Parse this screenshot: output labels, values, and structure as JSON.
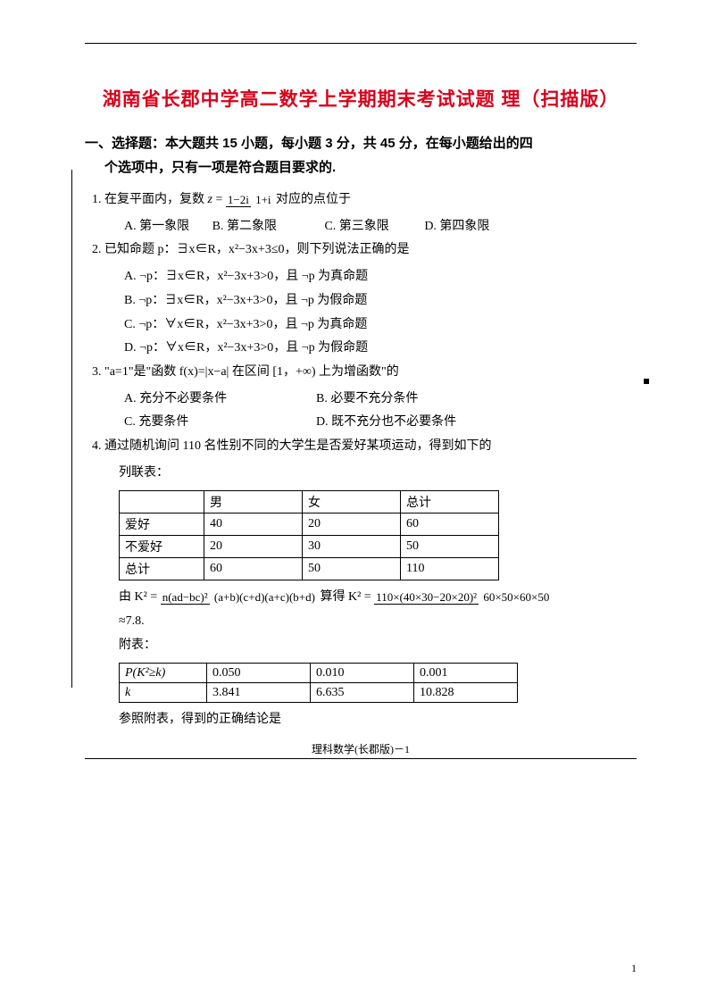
{
  "title": "湖南省长郡中学高二数学上学期期末考试试题 理（扫描版）",
  "section": {
    "line1": "一、选择题：本大题共 15 小题，每小题 3 分，共 45 分，在每小题给出的四",
    "line2": "个选项中，只有一项是符合题目要求的."
  },
  "q1": {
    "prefix": "1. 在复平面内，复数 ",
    "z": "z",
    "eq": "=",
    "num": "1−2i",
    "den": "1+i",
    "suffix": "对应的点位于",
    "A": "A. 第一象限",
    "B": "B. 第二象限",
    "C": "C. 第三象限",
    "D": "D. 第四象限"
  },
  "q2": {
    "stem": "2. 已知命题 p：∃x∈R，x²−3x+3≤0，则下列说法正确的是",
    "A": "A. ¬p：∃x∈R，x²−3x+3>0，且 ¬p 为真命题",
    "B": "B. ¬p：∃x∈R，x²−3x+3>0，且 ¬p 为假命题",
    "C": "C. ¬p：∀x∈R，x²−3x+3>0，且 ¬p 为真命题",
    "D": "D. ¬p：∀x∈R，x²−3x+3>0，且 ¬p 为假命题"
  },
  "q3": {
    "stem": "3. \"a=1\"是\"函数 f(x)=|x−a| 在区间 [1，+∞) 上为增函数\"的",
    "A": "A. 充分不必要条件",
    "B": "B. 必要不充分条件",
    "C": "C. 充要条件",
    "D": "D. 既不充分也不必要条件"
  },
  "q4": {
    "stem1": "4. 通过随机询问 110 名性别不同的大学生是否爱好某项运动，得到如下的",
    "stem2": "列联表：",
    "table1": {
      "headers": [
        "",
        "男",
        "女",
        "总计"
      ],
      "rows": [
        [
          "爱好",
          "40",
          "20",
          "60"
        ],
        [
          "不爱好",
          "20",
          "30",
          "50"
        ],
        [
          "总计",
          "60",
          "50",
          "110"
        ]
      ]
    },
    "formula": {
      "pre": "由 ",
      "lhs": "K²",
      "eq1": "=",
      "num1": "n(ad−bc)²",
      "den1": "(a+b)(c+d)(a+c)(b+d)",
      "mid": " 算得 ",
      "lhs2": "K²",
      "eq2": "=",
      "num2": "110×(40×30−20×20)²",
      "den2": "60×50×60×50"
    },
    "approx": "≈7.8.",
    "attach": "附表：",
    "table2": {
      "rows": [
        [
          "P(K²≥k)",
          "0.050",
          "0.010",
          "0.001"
        ],
        [
          "k",
          "3.841",
          "6.635",
          "10.828"
        ]
      ]
    },
    "conclude": "参照附表，得到的正确结论是"
  },
  "footer": "理科数学(长郡版)－1",
  "pageNum": "1"
}
